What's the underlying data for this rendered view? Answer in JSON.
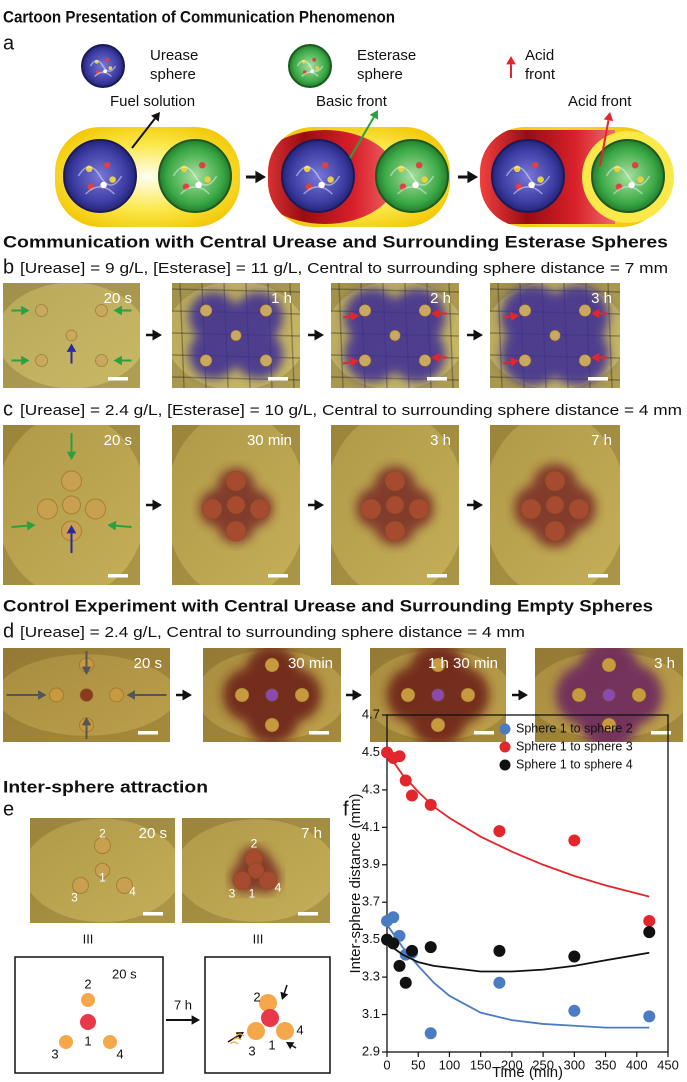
{
  "figure": {
    "a": {
      "heading": "Cartoon Presentation of Communication Phenomenon",
      "letter": "a",
      "legend": [
        {
          "lines": [
            "Urease",
            "sphere"
          ]
        },
        {
          "lines": [
            "Esterase",
            "sphere"
          ]
        },
        {
          "lines": [
            "Acid",
            "front"
          ]
        }
      ],
      "callouts": [
        "Fuel solution",
        "Basic front",
        "Acid front"
      ]
    },
    "b": {
      "heading": "Communication with Central Urease and Surrounding Esterase Spheres",
      "letter": "b",
      "condition": "[Urease] = 9 g/L, [Esterase] = 11 g/L, Central to surrounding sphere distance = 7 mm",
      "times": [
        "20 s",
        "1 h",
        "2 h",
        "3 h"
      ]
    },
    "c": {
      "letter": "c",
      "condition": "[Urease] = 2.4 g/L, [Esterase] = 10 g/L, Central to surrounding sphere distance = 4 mm",
      "times": [
        "20 s",
        "30 min",
        "3 h",
        "7 h"
      ]
    },
    "d": {
      "heading": "Control Experiment with Central Urease and Surrounding Empty Spheres",
      "letter": "d",
      "condition": "[Urease] = 2.4 g/L, Central to surrounding sphere distance = 4 mm",
      "times": [
        "20 s",
        "30 min",
        "1 h 30 min",
        "3 h"
      ]
    },
    "e": {
      "heading": "Inter-sphere attraction",
      "letter": "e",
      "times": [
        "20 s",
        "7 h"
      ],
      "sphere_numbers": [
        "1",
        "2",
        "3",
        "4"
      ],
      "view_labels": [
        "III",
        "III"
      ],
      "schematic_time": "20 s",
      "transition": "7 h"
    },
    "f": {
      "letter": "f"
    }
  },
  "chart_data": {
    "type": "scatter",
    "xlabel": "Time (min)",
    "ylabel": "Inter-sphere distance (mm)",
    "xlim": [
      0,
      450
    ],
    "xticks": [
      0,
      50,
      100,
      150,
      200,
      250,
      300,
      350,
      400,
      450
    ],
    "ylim": [
      2.9,
      4.7
    ],
    "yticks": [
      2.9,
      3.1,
      3.3,
      3.5,
      3.7,
      3.9,
      4.1,
      4.3,
      4.5,
      4.7
    ],
    "legend": "upper right",
    "series": [
      {
        "name": "Sphere 1 to sphere 2",
        "color": "#4a7cc3",
        "x": [
          0,
          10,
          20,
          30,
          40,
          70,
          180,
          300,
          420
        ],
        "values": [
          3.6,
          3.62,
          3.52,
          3.42,
          3.43,
          3.0,
          3.27,
          3.12,
          3.09
        ],
        "fit": {
          "x": [
            0,
            25,
            50,
            75,
            100,
            150,
            200,
            250,
            300,
            350,
            420
          ],
          "values": [
            3.58,
            3.46,
            3.36,
            3.27,
            3.2,
            3.11,
            3.07,
            3.05,
            3.04,
            3.03,
            3.03
          ]
        }
      },
      {
        "name": "Sphere 1 to sphere 3",
        "color": "#e3262b",
        "x": [
          0,
          10,
          20,
          30,
          40,
          70,
          180,
          300,
          420
        ],
        "values": [
          4.5,
          4.47,
          4.48,
          4.35,
          4.27,
          4.22,
          4.08,
          4.03,
          3.6
        ],
        "fit": {
          "x": [
            0,
            25,
            50,
            75,
            100,
            150,
            200,
            250,
            300,
            350,
            420
          ],
          "values": [
            4.5,
            4.38,
            4.29,
            4.21,
            4.15,
            4.05,
            3.97,
            3.9,
            3.84,
            3.79,
            3.73
          ]
        }
      },
      {
        "name": "Sphere 1 to sphere 4",
        "color": "#111111",
        "x": [
          0,
          10,
          20,
          30,
          40,
          70,
          180,
          300,
          420
        ],
        "values": [
          3.5,
          3.48,
          3.36,
          3.27,
          3.44,
          3.46,
          3.44,
          3.41,
          3.54
        ],
        "fit": {
          "x": [
            0,
            25,
            50,
            75,
            100,
            150,
            200,
            250,
            300,
            350,
            420
          ],
          "values": [
            3.48,
            3.42,
            3.38,
            3.36,
            3.35,
            3.33,
            3.33,
            3.34,
            3.36,
            3.39,
            3.43
          ]
        }
      }
    ]
  }
}
